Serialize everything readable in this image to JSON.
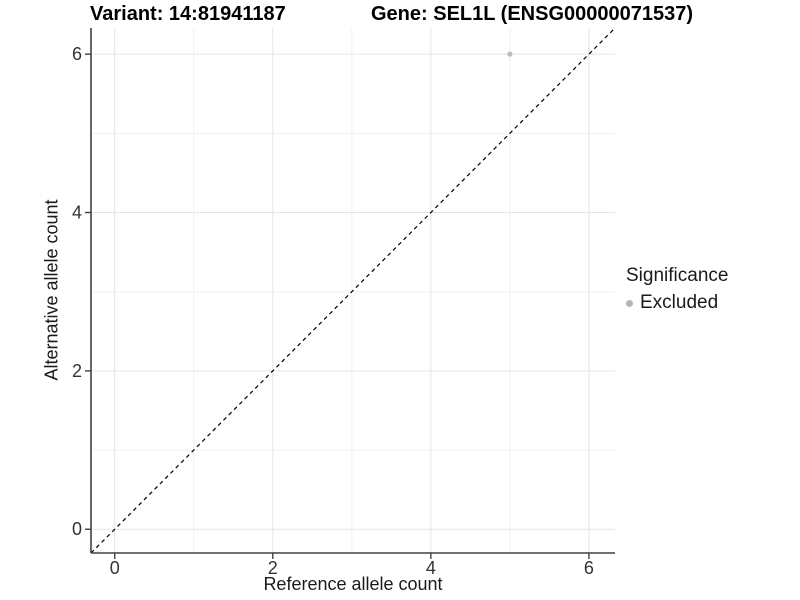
{
  "chart_data": {
    "type": "scatter",
    "title_left": "Variant: 14:81941187",
    "title_right": "Gene: SEL1L (ENSG00000071537)",
    "xlabel": "Reference allele count",
    "ylabel": "Alternative allele count",
    "xlim": [
      -0.3,
      6.33
    ],
    "ylim": [
      -0.3,
      6.33
    ],
    "x_ticks": [
      0,
      2,
      4,
      6
    ],
    "y_ticks": [
      0,
      2,
      4,
      6
    ],
    "x_minor_gridlines": [
      1,
      3,
      5
    ],
    "y_minor_gridlines": [
      1,
      3,
      5
    ],
    "grid": true,
    "reference_line": {
      "type": "identity",
      "style": "dashed",
      "color": "#000000"
    },
    "series": [
      {
        "name": "Excluded",
        "color": "#bdbdbd",
        "points": [
          {
            "x": 5,
            "y": 6
          }
        ]
      }
    ],
    "legend": {
      "title": "Significance",
      "position": "right",
      "entries": [
        {
          "label": "Excluded",
          "color": "#b5b5b5"
        }
      ]
    }
  },
  "style": {
    "grid_major_color": "#e5e5e5",
    "grid_minor_color": "#f0f0f0",
    "axis_line_color": "#404040",
    "tick_label_color": "#333333",
    "background_color": "#ffffff"
  }
}
